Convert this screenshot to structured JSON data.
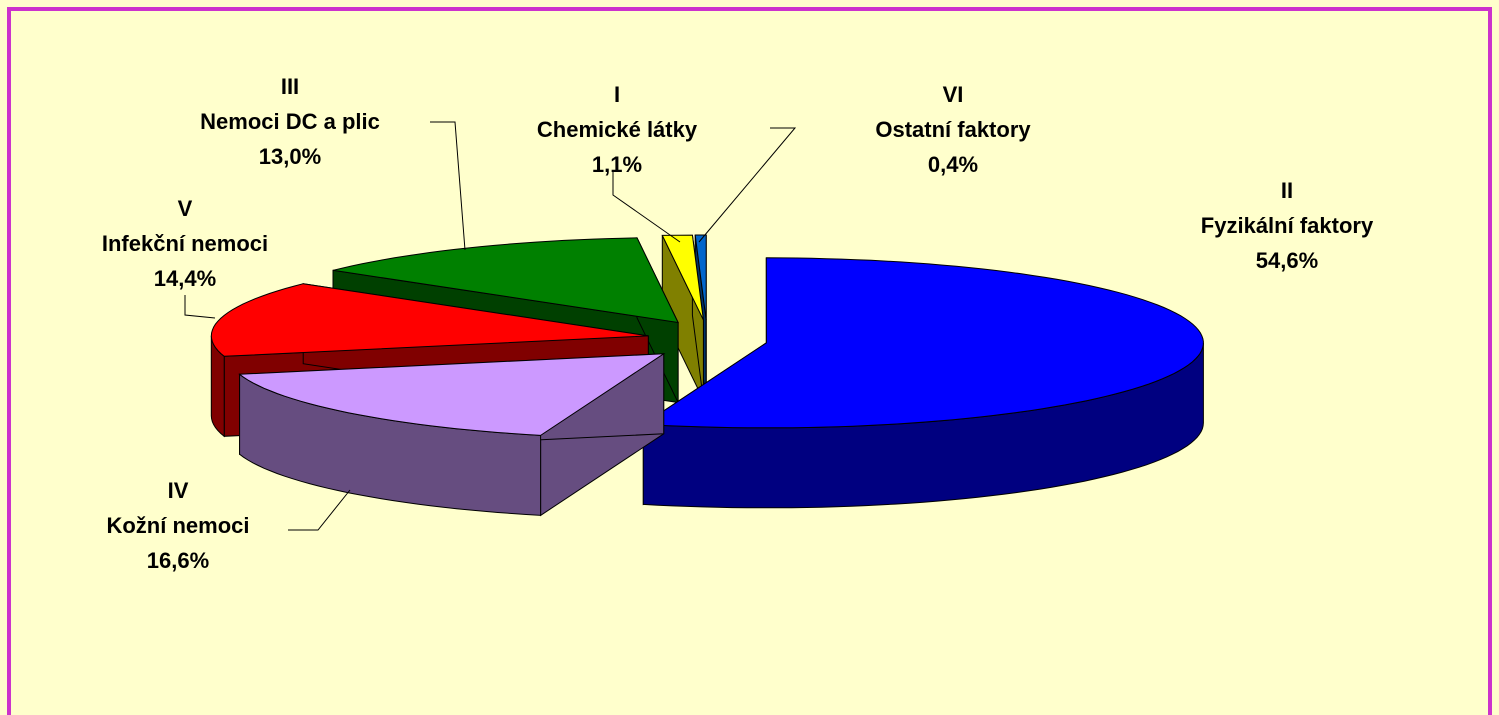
{
  "chart_data": {
    "type": "pie",
    "codes": [
      "I",
      "VI",
      "II",
      "IV",
      "V",
      "III"
    ],
    "categories": [
      "Chemické látky",
      "Ostatní faktory",
      "Fyzikální faktory",
      "Kožní nemoci",
      "Infekční nemoci",
      "Nemoci DC a  plic"
    ],
    "values": [
      1.1,
      0.4,
      54.6,
      16.6,
      14.4,
      13.0
    ],
    "value_labels": [
      "1,1%",
      "0,4%",
      "54,6%",
      "16,6%",
      "14,4%",
      "13,0%"
    ],
    "colors": [
      "#ffff00",
      "#0066cc",
      "#0000ff",
      "#cc99ff",
      "#ff0000",
      "#008000"
    ]
  }
}
